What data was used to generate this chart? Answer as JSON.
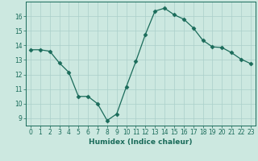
{
  "x": [
    0,
    1,
    2,
    3,
    4,
    5,
    6,
    7,
    8,
    9,
    10,
    11,
    12,
    13,
    14,
    15,
    16,
    17,
    18,
    19,
    20,
    21,
    22,
    23
  ],
  "y": [
    13.7,
    13.7,
    13.6,
    12.8,
    12.15,
    10.5,
    10.5,
    10.0,
    8.85,
    9.3,
    11.15,
    12.9,
    14.75,
    16.35,
    16.55,
    16.1,
    15.8,
    15.2,
    14.35,
    13.9,
    13.85,
    13.5,
    13.05,
    12.75
  ],
  "line_color": "#1a6b5a",
  "marker": "D",
  "marker_size": 2.5,
  "bg_color": "#cce8e0",
  "grid_color": "#aacfca",
  "xlabel": "Humidex (Indice chaleur)",
  "ylim": [
    8.5,
    17.0
  ],
  "xlim": [
    -0.5,
    23.5
  ],
  "yticks": [
    9,
    10,
    11,
    12,
    13,
    14,
    15,
    16
  ],
  "xticks": [
    0,
    1,
    2,
    3,
    4,
    5,
    6,
    7,
    8,
    9,
    10,
    11,
    12,
    13,
    14,
    15,
    16,
    17,
    18,
    19,
    20,
    21,
    22,
    23
  ],
  "tick_fontsize": 5.5,
  "xlabel_fontsize": 6.5,
  "label_color": "#1a6b5a"
}
